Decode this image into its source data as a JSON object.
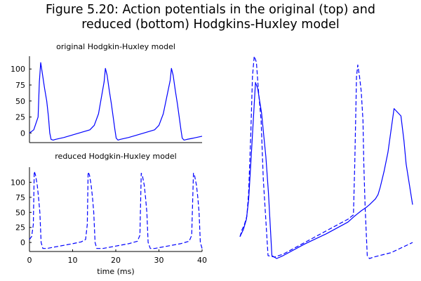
{
  "figure": {
    "title_line1": "Figure 5.20: Action potentials in the original (top) and",
    "title_line2": "reduced (bottom) Hodgkins-Huxley model"
  },
  "chart_data": [
    {
      "type": "line",
      "title": "original Hodgkin-Huxley model",
      "xlabel": "",
      "ylabel": "",
      "xlim": [
        0,
        40
      ],
      "ylim": [
        -15,
        120
      ],
      "yticks": [
        0,
        25,
        50,
        75,
        100
      ],
      "grid": false,
      "series": [
        {
          "style": "solid",
          "color": "#0000ff",
          "x": [
            0,
            1.0,
            2.0,
            2.3,
            2.6,
            3.0,
            3.5,
            4.0,
            4.4,
            4.7,
            5.0,
            5.5,
            6,
            8,
            10,
            12,
            14,
            15.0,
            16.0,
            17.3,
            17.6,
            18.0,
            18.5,
            19.0,
            19.8,
            20.1,
            20.5,
            21,
            23,
            25,
            27,
            29,
            30.0,
            31.0,
            32.6,
            32.9,
            33.3,
            33.8,
            34.3,
            35.1,
            35.4,
            35.8,
            36.5,
            38,
            40
          ],
          "y": [
            0,
            5,
            25,
            80,
            110,
            92,
            70,
            50,
            25,
            0,
            -10,
            -11,
            -10,
            -7,
            -3,
            1,
            5,
            12,
            30,
            80,
            101,
            90,
            66,
            45,
            5,
            -8,
            -11,
            -10,
            -7,
            -3,
            1,
            5,
            12,
            30,
            82,
            101,
            90,
            66,
            45,
            5,
            -8,
            -11,
            -10,
            -8,
            -5
          ]
        }
      ]
    },
    {
      "type": "line",
      "title": "reduced Hodgkin-Huxley model",
      "xlabel": "time (ms)",
      "ylabel": "",
      "xlim": [
        0,
        40
      ],
      "ylim": [
        -15,
        125
      ],
      "xticks": [
        0,
        10,
        20,
        30,
        40
      ],
      "yticks": [
        0,
        25,
        50,
        75,
        100
      ],
      "grid": false,
      "series": [
        {
          "style": "dashed",
          "color": "#0000ff",
          "x": [
            0,
            0.5,
            0.9,
            1.1,
            1.4,
            1.8,
            2.1,
            2.4,
            2.7,
            3.1,
            4,
            7,
            10,
            12,
            13.0,
            13.4,
            13.6,
            13.9,
            14.3,
            14.6,
            14.9,
            15.2,
            15.6,
            17,
            20,
            23,
            25,
            25.6,
            25.9,
            26.2,
            26.6,
            26.9,
            27.2,
            27.5,
            28,
            29,
            32,
            35,
            37,
            37.6,
            38.0,
            38.3,
            38.7,
            39.0,
            39.3,
            39.6,
            40
          ],
          "y": [
            5,
            10,
            30,
            118,
            112,
            95,
            75,
            50,
            0,
            -10,
            -10,
            -6,
            -2,
            1,
            5,
            30,
            117,
            112,
            95,
            75,
            50,
            0,
            -10,
            -10,
            -6,
            -2,
            2,
            12,
            115,
            110,
            95,
            75,
            50,
            0,
            -10,
            -10,
            -6,
            -2,
            2,
            12,
            115,
            110,
            95,
            75,
            50,
            0,
            -10
          ]
        }
      ]
    },
    {
      "type": "line",
      "title": "",
      "xlabel": "",
      "ylabel": "",
      "axes": "none",
      "xlim": [
        0,
        40
      ],
      "ylim": [
        -15,
        125
      ],
      "grid": false,
      "series": [
        {
          "style": "solid",
          "color": "#0000ff",
          "x": [
            0,
            0.8,
            1.5,
            2.0,
            2.4,
            3.0,
            3.6,
            4.1,
            5.0,
            5.5,
            6.0,
            6.6,
            7.4,
            8.5,
            10,
            15,
            20,
            25,
            26.5,
            28.2,
            29.2,
            30.0,
            31.4,
            32.0,
            32.5,
            33.4,
            34.3,
            35.7,
            37.3,
            38.0,
            38.5,
            40
          ],
          "y": [
            0,
            5,
            12,
            25,
            45,
            75,
            106,
            102,
            85,
            70,
            55,
            30,
            -13,
            -15,
            -13,
            -5,
            2,
            10,
            14,
            18,
            20,
            22,
            26,
            29,
            34,
            45,
            58,
            88,
            83,
            66,
            50,
            22
          ]
        },
        {
          "style": "dashed",
          "color": "#0000ff",
          "x": [
            0,
            0.5,
            1.0,
            1.6,
            2.0,
            2.5,
            2.9,
            3.3,
            3.8,
            4.3,
            4.9,
            5.4,
            6.5,
            8,
            10,
            15,
            20,
            25,
            26.3,
            26.6,
            27.0,
            27.3,
            27.7,
            28.1,
            28.5,
            28.7,
            29.0,
            29.5,
            30.0,
            31,
            35,
            40
          ],
          "y": [
            0,
            5,
            8,
            14,
            30,
            70,
            110,
            124,
            120,
            100,
            80,
            40,
            -13,
            -14,
            -12,
            -4,
            4,
            12,
            15,
            50,
            110,
            118,
            110,
            100,
            80,
            50,
            20,
            -13,
            -15,
            -14,
            -11,
            -4
          ]
        }
      ]
    }
  ]
}
